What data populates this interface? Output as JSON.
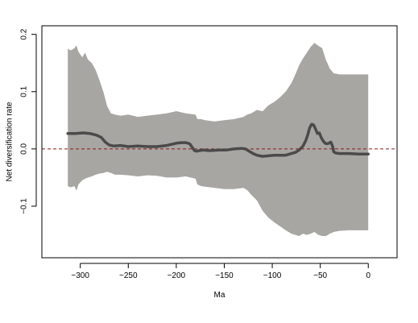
{
  "chart_data": {
    "type": "area",
    "xlabel": "Ma",
    "ylabel": "Net diversification rate",
    "xlim": [
      -340,
      30
    ],
    "ylim": [
      -0.19,
      0.215
    ],
    "xticks": [
      -300,
      -250,
      -200,
      -150,
      -100,
      -50,
      0
    ],
    "yticks": [
      -0.1,
      0.0,
      0.1,
      0.2
    ],
    "reference_line": {
      "y": 0.0,
      "color": "#8b1a1a",
      "style": "dashed"
    },
    "grid": false,
    "colors": {
      "band": "#a8a6a3",
      "mean_line": "#4a4a4a"
    },
    "series": [
      {
        "kind": "band",
        "x": [
          -313,
          -310,
          -306,
          -304,
          -302,
          -298,
          -295,
          -292,
          -288,
          -284,
          -280,
          -276,
          -272,
          -268,
          -264,
          -258,
          -250,
          -240,
          -230,
          -220,
          -210,
          -200,
          -190,
          -180,
          -178,
          -174,
          -170,
          -160,
          -150,
          -140,
          -130,
          -126,
          -122,
          -116,
          -110,
          -104,
          -98,
          -92,
          -86,
          -80,
          -76,
          -72,
          -68,
          -64,
          -60,
          -56,
          -52,
          -48,
          -44,
          -40,
          -36,
          -30,
          -20,
          -10,
          0
        ],
        "upper": [
          0.175,
          0.172,
          0.176,
          0.181,
          0.17,
          0.16,
          0.168,
          0.156,
          0.15,
          0.138,
          0.12,
          0.1,
          0.075,
          0.062,
          0.06,
          0.058,
          0.06,
          0.056,
          0.058,
          0.06,
          0.062,
          0.066,
          0.062,
          0.06,
          0.052,
          0.052,
          0.05,
          0.048,
          0.05,
          0.052,
          0.056,
          0.06,
          0.062,
          0.068,
          0.066,
          0.076,
          0.082,
          0.09,
          0.1,
          0.115,
          0.13,
          0.146,
          0.158,
          0.168,
          0.178,
          0.185,
          0.18,
          0.176,
          0.155,
          0.14,
          0.132,
          0.13,
          0.13,
          0.13,
          0.13
        ],
        "lower": [
          -0.065,
          -0.067,
          -0.065,
          -0.073,
          -0.062,
          -0.055,
          -0.052,
          -0.05,
          -0.048,
          -0.045,
          -0.043,
          -0.042,
          -0.04,
          -0.042,
          -0.045,
          -0.045,
          -0.046,
          -0.048,
          -0.046,
          -0.047,
          -0.05,
          -0.05,
          -0.048,
          -0.052,
          -0.062,
          -0.065,
          -0.066,
          -0.068,
          -0.07,
          -0.07,
          -0.068,
          -0.072,
          -0.08,
          -0.09,
          -0.108,
          -0.12,
          -0.128,
          -0.135,
          -0.142,
          -0.148,
          -0.15,
          -0.152,
          -0.148,
          -0.15,
          -0.148,
          -0.145,
          -0.15,
          -0.152,
          -0.152,
          -0.148,
          -0.145,
          -0.143,
          -0.142,
          -0.142,
          -0.142
        ]
      },
      {
        "kind": "line",
        "x": [
          -313,
          -305,
          -297,
          -290,
          -283,
          -278,
          -274,
          -270,
          -265,
          -258,
          -250,
          -240,
          -230,
          -220,
          -210,
          -200,
          -195,
          -190,
          -186,
          -183,
          -181,
          -179,
          -176,
          -172,
          -165,
          -155,
          -148,
          -140,
          -132,
          -128,
          -124,
          -120,
          -116,
          -110,
          -104,
          -98,
          -92,
          -86,
          -80,
          -76,
          -72,
          -68,
          -65,
          -63,
          -61,
          -59,
          -57,
          -55,
          -53,
          -51,
          -49,
          -47,
          -45,
          -43,
          -41,
          -39,
          -37,
          -36,
          -34,
          -30,
          -20,
          -10,
          0
        ],
        "y": [
          0.027,
          0.027,
          0.028,
          0.027,
          0.024,
          0.02,
          0.012,
          0.007,
          0.005,
          0.006,
          0.004,
          0.005,
          0.004,
          0.004,
          0.006,
          0.01,
          0.011,
          0.011,
          0.009,
          0.002,
          -0.003,
          -0.004,
          -0.003,
          -0.002,
          -0.003,
          -0.002,
          -0.002,
          0.0,
          0.001,
          0.0,
          -0.004,
          -0.008,
          -0.011,
          -0.013,
          -0.012,
          -0.011,
          -0.011,
          -0.011,
          -0.008,
          -0.006,
          -0.002,
          0.005,
          0.015,
          0.025,
          0.037,
          0.043,
          0.042,
          0.035,
          0.027,
          0.028,
          0.02,
          0.014,
          0.01,
          0.009,
          0.01,
          0.012,
          0.004,
          -0.005,
          -0.007,
          -0.008,
          -0.008,
          -0.009,
          -0.009
        ]
      }
    ]
  }
}
